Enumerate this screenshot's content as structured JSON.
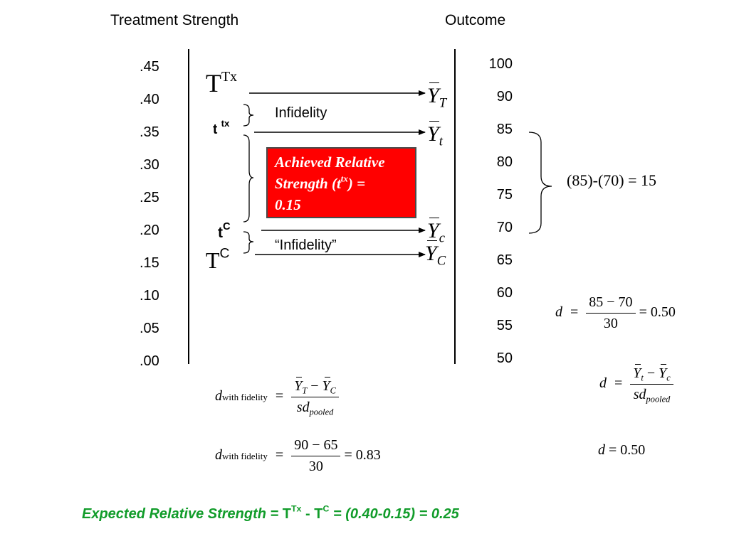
{
  "headers": {
    "left": "Treatment Strength",
    "right": "Outcome"
  },
  "left_ticks": [
    ".45",
    ".40",
    ".35",
    ".30",
    ".25",
    ".20",
    ".15",
    ".10",
    ".05",
    ".00"
  ],
  "right_ticks": [
    "100",
    "90",
    "85",
    "80",
    "75",
    "70",
    "65",
    "60",
    "55",
    "50"
  ],
  "labels": {
    "T_base": "T",
    "T_sup": "Tx",
    "t_base": "t",
    "t_sup": "tx",
    "tc_base": "t",
    "tc_sup": "C",
    "TC_base": "T",
    "TC_sup": "C",
    "infidelity": "Infidelity",
    "infidelity_quoted": "“Infidelity”"
  },
  "outcomes": {
    "Y": "Y",
    "sub_T": "T",
    "sub_t": "t",
    "sub_c": "c",
    "sub_C": "C"
  },
  "red_box": {
    "line1": "Achieved Relative",
    "line2_pre": "Strength (t",
    "line2_sup": "tx",
    "line2_post": ") =",
    "line3": "0.15",
    "color": "#ff0000"
  },
  "brace_result": "(85)-(70) = 15",
  "formulas": {
    "d": "d",
    "eq": "=",
    "minus": "−",
    "d1_num": "85 − 70",
    "d1_den": "30",
    "d1_result": "= 0.50",
    "d2_den_base": "sd",
    "d2_den_sub": "pooled",
    "d3_result": "= 0.50",
    "wf_sub": "with fidelity",
    "wf_den_base": "sd",
    "wf_den_sub": "pooled",
    "wf2_num": "90 − 65",
    "wf2_den": "30",
    "wf2_result": "= 0.83"
  },
  "bottom": {
    "prefix": "Expected Relative Strength = ",
    "T1": "T",
    "T1_sup": "Tx",
    "mid": " - ",
    "T2": "T",
    "T2_sup": "C",
    "suffix": " = (0.40-0.15) = 0.25",
    "color": "#119c2a"
  }
}
